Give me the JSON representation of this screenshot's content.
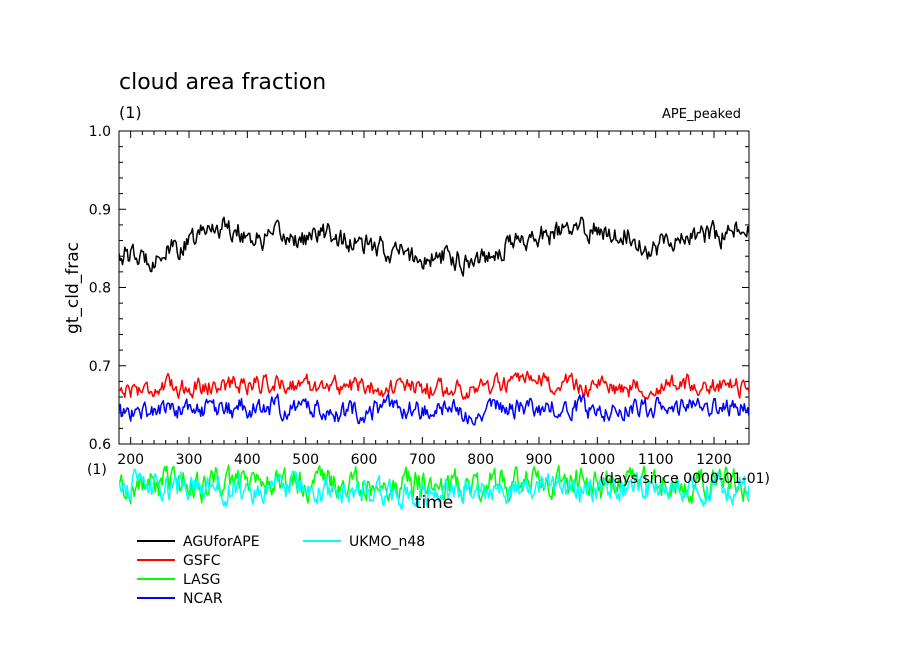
{
  "chart_data": {
    "type": "line",
    "title": "cloud area fraction",
    "units": "(1)",
    "run_label": "APE_peaked",
    "ylabel": "gt_cld_frac",
    "xlabel": "time",
    "x_axis_note": "(1)",
    "x_axis_right_note": "(days since 0000-01-01)",
    "xlim": [
      180,
      1260
    ],
    "ylim": [
      0.6,
      1.0
    ],
    "x_ticks": [
      "200",
      "300",
      "400",
      "500",
      "600",
      "700",
      "800",
      "900",
      "1000",
      "1100",
      "1200"
    ],
    "y_ticks": [
      "0.6",
      "0.7",
      "0.8",
      "0.9",
      "1.0"
    ],
    "grid": false,
    "legend_position": "bottom-left",
    "series": [
      {
        "name": "AGUforAPE",
        "color": "#000000",
        "x": [
          180,
          220,
          260,
          300,
          330,
          350,
          380,
          420,
          460,
          500,
          540,
          580,
          620,
          660,
          700,
          740,
          780,
          820,
          860,
          900,
          940,
          980,
          1020,
          1060,
          1090,
          1120,
          1150,
          1180,
          1210,
          1240,
          1260
        ],
        "values": [
          0.845,
          0.835,
          0.845,
          0.855,
          0.875,
          0.88,
          0.875,
          0.86,
          0.865,
          0.862,
          0.87,
          0.855,
          0.85,
          0.845,
          0.835,
          0.84,
          0.835,
          0.845,
          0.86,
          0.865,
          0.87,
          0.875,
          0.872,
          0.868,
          0.845,
          0.865,
          0.86,
          0.87,
          0.865,
          0.875,
          0.87
        ],
        "noise": 0.012
      },
      {
        "name": "GSFC",
        "color": "#ff0000",
        "x": [
          180,
          260,
          340,
          420,
          500,
          580,
          660,
          740,
          820,
          900,
          980,
          1060,
          1140,
          1220,
          1260
        ],
        "values": [
          0.67,
          0.672,
          0.675,
          0.678,
          0.676,
          0.674,
          0.672,
          0.67,
          0.675,
          0.678,
          0.674,
          0.672,
          0.676,
          0.674,
          0.673
        ],
        "noise": 0.01
      },
      {
        "name": "LASG",
        "color": "#00ff00",
        "x": [
          180,
          260,
          340,
          420,
          500,
          580,
          660,
          740,
          820,
          900,
          980,
          1060,
          1140,
          1220,
          1260
        ],
        "values": [
          0.545,
          0.55,
          0.548,
          0.552,
          0.55,
          0.545,
          0.55,
          0.548,
          0.552,
          0.55,
          0.548,
          0.552,
          0.55,
          0.548,
          0.55
        ],
        "noise": 0.016
      },
      {
        "name": "NCAR",
        "color": "#0000ff",
        "x": [
          180,
          260,
          340,
          420,
          500,
          580,
          660,
          740,
          820,
          900,
          980,
          1060,
          1140,
          1220,
          1260
        ],
        "values": [
          0.638,
          0.645,
          0.643,
          0.648,
          0.646,
          0.642,
          0.645,
          0.641,
          0.644,
          0.646,
          0.645,
          0.648,
          0.644,
          0.646,
          0.647
        ],
        "noise": 0.011
      },
      {
        "name": "UKMO_n48",
        "color": "#00ffff",
        "x": [
          180,
          260,
          340,
          420,
          500,
          580,
          660,
          740,
          820,
          900,
          980,
          1060,
          1140,
          1220,
          1260
        ],
        "values": [
          0.548,
          0.542,
          0.545,
          0.54,
          0.543,
          0.538,
          0.536,
          0.54,
          0.542,
          0.545,
          0.54,
          0.543,
          0.541,
          0.544,
          0.542
        ],
        "noise": 0.014
      }
    ]
  }
}
